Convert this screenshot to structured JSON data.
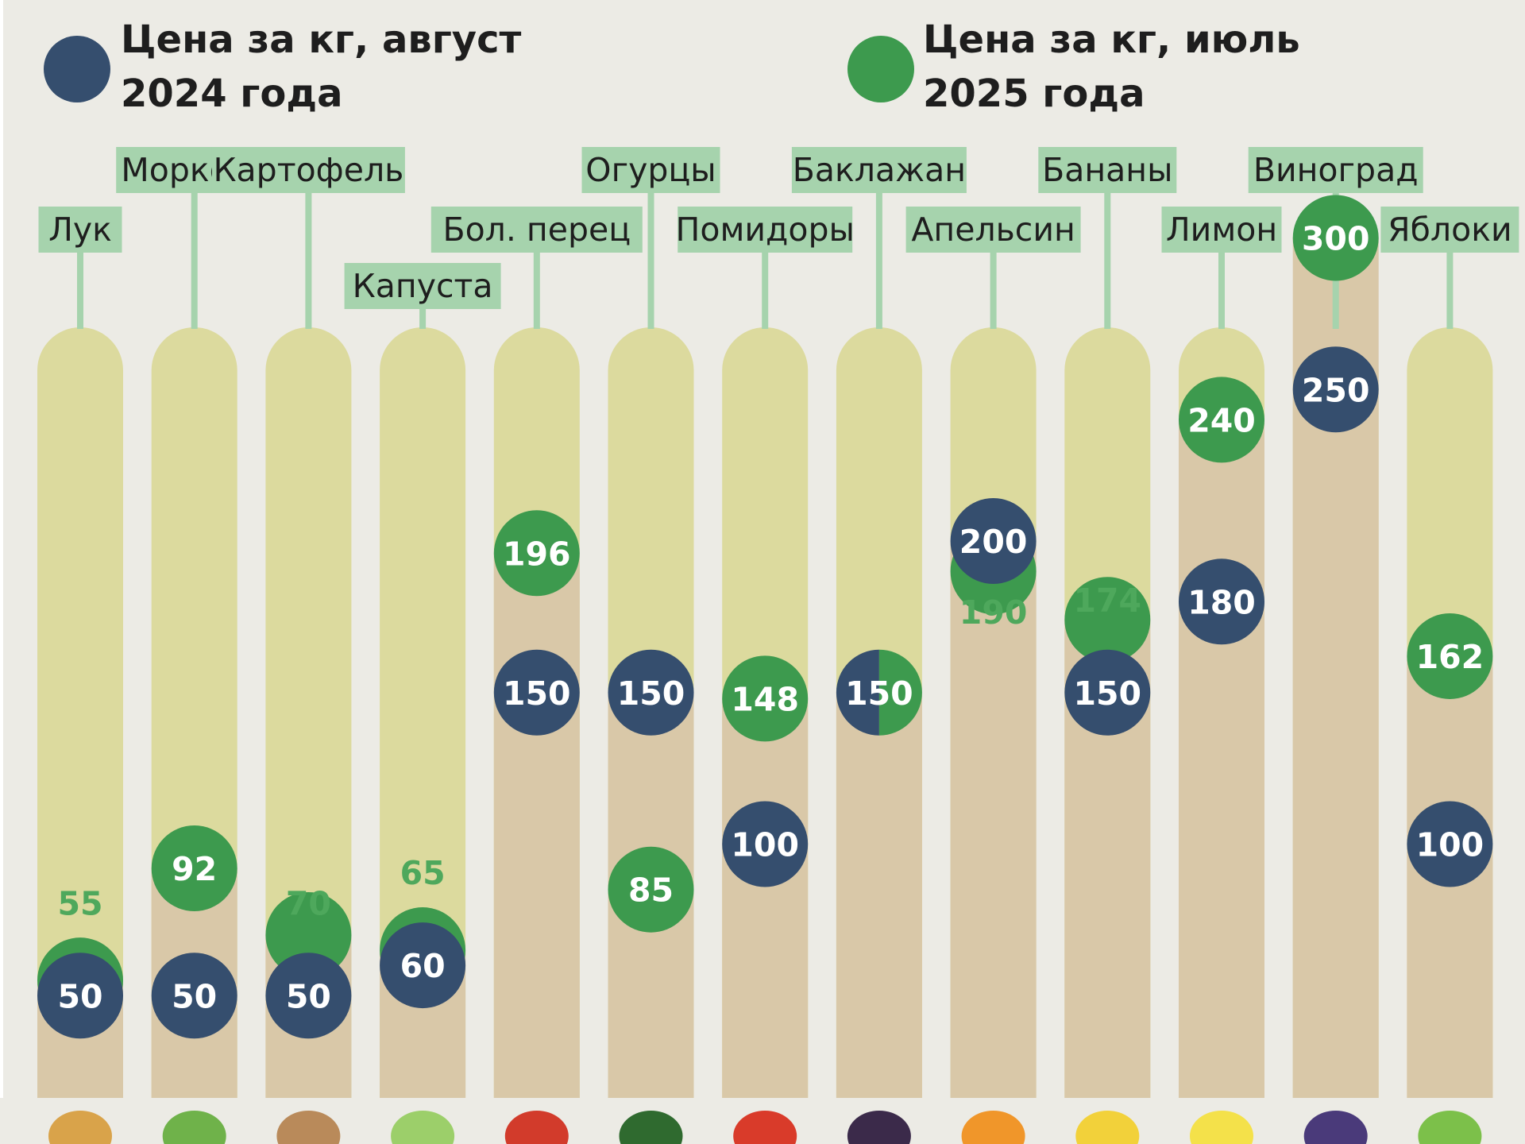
{
  "colors": {
    "background": "#ecebe5",
    "aug2024": "#354e6e",
    "jul2025": "#3d9a4e",
    "track": "#dcda9e",
    "fill": "#d9c8a8",
    "label_bg": "#a6d3ad",
    "text": "#1e1e1e",
    "value_text": "#ffffff",
    "outside_value_text": "#4ea85c"
  },
  "legend": [
    {
      "line1": "Цена за кг, август",
      "line2": "2024 года",
      "color": "#354e6e"
    },
    {
      "line1": "Цена за кг, июль",
      "line2": "2025 года",
      "color": "#3d9a4e"
    }
  ],
  "chart_data": {
    "type": "dot-plot",
    "title": "",
    "xlabel": "",
    "ylabel": "",
    "ylim": [
      0,
      320
    ],
    "grid": false,
    "legend_position": "top",
    "categories": [
      "Лук",
      "Морковь",
      "Картофель",
      "Капуста",
      "Бол. перец",
      "Огурцы",
      "Помидоры",
      "Баклажан",
      "Апельсин",
      "Бананы",
      "Лимон",
      "Виноград",
      "Яблоки"
    ],
    "series": [
      {
        "name": "Цена за кг, август 2024 года",
        "values": [
          50,
          50,
          50,
          60,
          150,
          150,
          100,
          150,
          200,
          150,
          180,
          250,
          100
        ]
      },
      {
        "name": "Цена за кг, июль 2025 года",
        "values": [
          55,
          92,
          70,
          65,
          196,
          85,
          148,
          150,
          190,
          174,
          240,
          300,
          162
        ]
      }
    ]
  },
  "product_icons": [
    "onion-icon",
    "carrot-icon",
    "potato-icon",
    "cabbage-icon",
    "bell-pepper-icon",
    "cucumber-icon",
    "tomato-icon",
    "eggplant-icon",
    "orange-icon",
    "banana-icon",
    "lemon-icon",
    "grape-icon",
    "apple-icon"
  ]
}
